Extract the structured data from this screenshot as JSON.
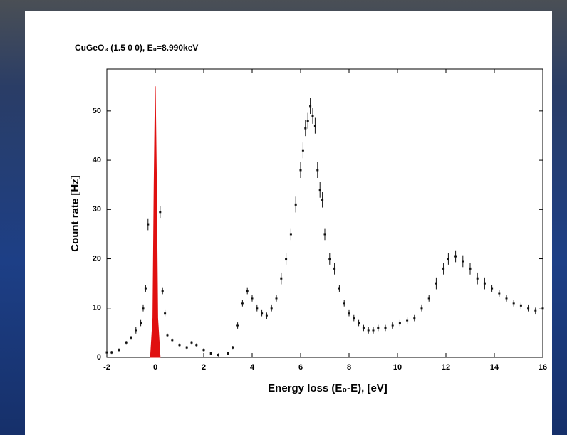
{
  "chart_data": {
    "type": "scatter",
    "title": "CuGeO₃ (1.5 0 0),  E₀=8.990keV",
    "x_label": "Energy loss (E₀-E), [eV]",
    "y_label": "Count rate [Hz]",
    "x": [
      -2,
      -1.8,
      -1.5,
      -1.2,
      -1,
      -0.8,
      -0.6,
      -0.5,
      -0.4,
      -0.3,
      0.2,
      0.3,
      0.4,
      0.5,
      0.7,
      1,
      1.3,
      1.5,
      1.7,
      2,
      2.3,
      2.6,
      3,
      3.2,
      3.4,
      3.6,
      3.8,
      4,
      4.2,
      4.4,
      4.6,
      4.8,
      5,
      5.2,
      5.4,
      5.6,
      5.8,
      6,
      6.1,
      6.2,
      6.3,
      6.4,
      6.5,
      6.6,
      6.7,
      6.8,
      6.9,
      7,
      7.2,
      7.4,
      7.6,
      7.8,
      8,
      8.2,
      8.4,
      8.6,
      8.8,
      9,
      9.2,
      9.5,
      9.8,
      10.1,
      10.4,
      10.7,
      11,
      11.3,
      11.6,
      11.9,
      12.1,
      12.4,
      12.7,
      13,
      13.3,
      13.6,
      13.9,
      14.2,
      14.5,
      14.8,
      15.1,
      15.4,
      15.7,
      16
    ],
    "values": [
      1,
      1,
      1.5,
      3,
      4,
      5.5,
      7,
      10,
      14,
      27,
      29.5,
      13.5,
      9,
      4.5,
      3.5,
      2.5,
      2,
      3,
      2.5,
      1.5,
      0.8,
      0.5,
      0.8,
      2,
      6.5,
      11,
      13.5,
      12,
      10,
      9,
      8.5,
      10,
      12,
      16,
      20,
      25,
      31,
      38,
      42,
      46.5,
      48,
      51,
      49,
      47,
      38,
      34,
      32,
      25,
      20,
      18,
      14,
      11,
      9,
      8,
      7,
      6,
      5.5,
      5.5,
      6,
      6,
      6.5,
      7,
      7.5,
      8,
      10,
      12,
      15,
      18,
      20,
      20.5,
      19.5,
      18,
      16,
      15,
      14,
      13,
      12,
      11,
      10.5,
      10,
      9.5,
      10
    ],
    "errors": [
      0.3,
      0.3,
      0.3,
      0.3,
      0.3,
      0.7,
      0.7,
      0.7,
      0.7,
      1.2,
      1.2,
      0.7,
      0.7,
      0.3,
      0.3,
      0.3,
      0.3,
      0.3,
      0.3,
      0.3,
      0.3,
      0.3,
      0.3,
      0.3,
      0.7,
      0.7,
      0.7,
      0.7,
      0.7,
      0.7,
      0.7,
      0.7,
      0.7,
      1.2,
      1.2,
      1.2,
      1.6,
      1.6,
      1.6,
      1.6,
      1.6,
      1.6,
      1.6,
      1.6,
      1.6,
      1.6,
      1.6,
      1.2,
      1.2,
      1.2,
      0.7,
      0.7,
      0.7,
      0.7,
      0.7,
      0.7,
      0.7,
      0.7,
      0.7,
      0.7,
      0.7,
      0.7,
      0.7,
      0.7,
      0.7,
      0.7,
      1.2,
      1.2,
      1.2,
      1.2,
      1.2,
      1.2,
      1.2,
      1.2,
      0.7,
      0.7,
      0.7,
      0.7,
      0.7,
      0.7,
      0.7,
      0.7
    ],
    "color": "#111111",
    "peak": {
      "x": [
        -0.2,
        -0.1,
        -0.05,
        0,
        0.05,
        0.1,
        0.2
      ],
      "values": [
        0,
        8,
        35,
        55,
        35,
        8,
        0
      ],
      "color": "#e01010"
    },
    "xlim": [
      -2,
      16
    ],
    "ylim": [
      0,
      58.5
    ],
    "xticks": [
      -2,
      0,
      2,
      4,
      6,
      8,
      10,
      12,
      14,
      16
    ],
    "yticks": [
      0,
      10,
      20,
      30,
      40,
      50
    ]
  }
}
